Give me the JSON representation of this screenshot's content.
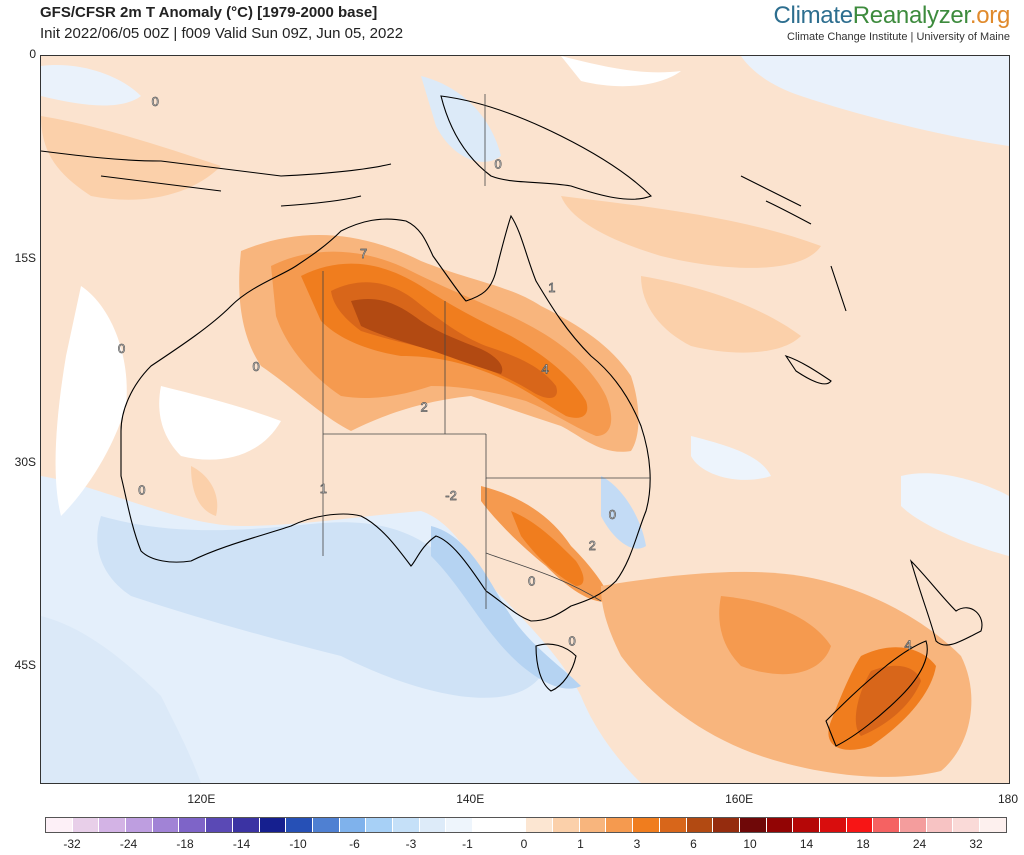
{
  "header": {
    "title": "GFS/CFSR 2m T Anomaly (°C) [1979-2000 base]",
    "subtitle": "Init 2022/06/05 00Z | f009 Valid Sun 09Z, Jun 05, 2022"
  },
  "brand": {
    "part1": "Climate",
    "part2": "Reanalyzer",
    "part3": ".org",
    "sub": "Climate Change Institute | University of Maine",
    "colors": {
      "part1": "#2d6e8f",
      "part2": "#3d8b3d",
      "part3": "#e08a2c"
    }
  },
  "map": {
    "region": "Australia / New Zealand",
    "lat_labels": [
      {
        "label": "0",
        "lat": 0
      },
      {
        "label": "15S",
        "lat": -15
      },
      {
        "label": "30S",
        "lat": -30
      },
      {
        "label": "45S",
        "lat": -45
      }
    ],
    "lon_labels": [
      {
        "label": "120E",
        "lon": 120
      },
      {
        "label": "140E",
        "lon": 140
      },
      {
        "label": "160E",
        "lon": 160
      },
      {
        "label": "180",
        "lon": 180
      }
    ],
    "contour_labels": [
      {
        "text": "0",
        "lon": 116.5,
        "lat": -3.3
      },
      {
        "text": "0",
        "lon": 142.0,
        "lat": -7.9
      },
      {
        "text": "7",
        "lon": 132.0,
        "lat": -14.5
      },
      {
        "text": "1",
        "lon": 146.0,
        "lat": -17.0
      },
      {
        "text": "0",
        "lon": 114.0,
        "lat": -21.5
      },
      {
        "text": "0",
        "lon": 124.0,
        "lat": -22.8
      },
      {
        "text": "4",
        "lon": 145.5,
        "lat": -23.0
      },
      {
        "text": "2",
        "lon": 136.5,
        "lat": -25.8
      },
      {
        "text": "0",
        "lon": 115.5,
        "lat": -31.9
      },
      {
        "text": "1",
        "lon": 129.0,
        "lat": -31.8
      },
      {
        "text": "-2",
        "lon": 138.5,
        "lat": -32.3
      },
      {
        "text": "0",
        "lon": 150.5,
        "lat": -33.7
      },
      {
        "text": "2",
        "lon": 149.0,
        "lat": -36.0
      },
      {
        "text": "0",
        "lon": 144.5,
        "lat": -38.6
      },
      {
        "text": "0",
        "lon": 147.5,
        "lat": -43.0
      },
      {
        "text": "4",
        "lon": 172.5,
        "lat": -43.3
      }
    ]
  },
  "legend": {
    "colors": [
      "#fdf0f7",
      "#e8cfe9",
      "#d3b3e5",
      "#be9ee0",
      "#a183d6",
      "#7e64c8",
      "#5a49b5",
      "#3b33a3",
      "#151f8f",
      "#2650b6",
      "#4f80d2",
      "#7fb2ec",
      "#a7d0f6",
      "#c5e0f8",
      "#ddebf9",
      "#eef5fc",
      "#ffffff",
      "#ffffff",
      "#fce6d2",
      "#fbd0aa",
      "#f8b57d",
      "#f59a4f",
      "#f07d1e",
      "#d8661a",
      "#b24a12",
      "#952c0e",
      "#6f0808",
      "#920404",
      "#b50707",
      "#d90d0d",
      "#f71515",
      "#f56262",
      "#f49d9d",
      "#f7c3c3",
      "#fadad8",
      "#fdf0ee"
    ],
    "ticks": [
      "-32",
      "-24",
      "-18",
      "-14",
      "-10",
      "-6",
      "-3",
      "-1",
      "0",
      "1",
      "3",
      "6",
      "10",
      "14",
      "18",
      "24",
      "32"
    ]
  }
}
